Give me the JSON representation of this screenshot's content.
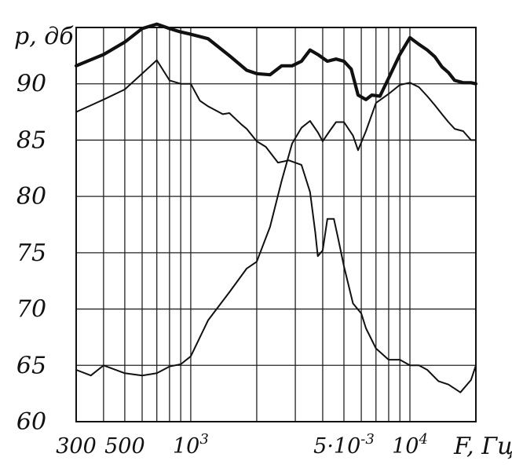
{
  "chart_data": {
    "type": "line",
    "title": "",
    "xlabel": "F, Гц",
    "ylabel": "p, дб",
    "x_scale": "log",
    "xlim": [
      300,
      20000
    ],
    "ylim": [
      60,
      95
    ],
    "grid": true,
    "x_tick_labels": [
      {
        "value": 300,
        "label": "300"
      },
      {
        "value": 500,
        "label": "500"
      },
      {
        "value": 1000,
        "label": "10",
        "sup": "3"
      },
      {
        "value": 5000,
        "label": "5·10",
        "sup": "-3"
      },
      {
        "value": 10000,
        "label": "10",
        "sup": "4"
      }
    ],
    "y_tick_labels": [
      {
        "value": 60,
        "label": "60"
      },
      {
        "value": 65,
        "label": "65"
      },
      {
        "value": 70,
        "label": "70"
      },
      {
        "value": 75,
        "label": "75"
      },
      {
        "value": 80,
        "label": "80"
      },
      {
        "value": 85,
        "label": "85"
      },
      {
        "value": 90,
        "label": "90"
      }
    ],
    "series": [
      {
        "style": "bold",
        "x": [
          300,
          400,
          500,
          600,
          700,
          800,
          900,
          1000,
          1200,
          1500,
          1800,
          2000,
          2300,
          2600,
          2900,
          3200,
          3500,
          3800,
          4200,
          4600,
          5000,
          5400,
          5800,
          6300,
          6700,
          7300,
          8000,
          9000,
          10000,
          11000,
          12000,
          13000,
          14000,
          15000,
          16000,
          17500,
          19000,
          20000
        ],
        "y": [
          91.6,
          92.6,
          93.7,
          94.9,
          95.3,
          94.9,
          94.6,
          94.4,
          94.0,
          92.5,
          91.2,
          90.9,
          90.8,
          91.6,
          91.6,
          92.0,
          93.0,
          92.6,
          92.0,
          92.2,
          92.0,
          91.3,
          89.0,
          88.6,
          89.0,
          88.9,
          90.5,
          92.6,
          94.1,
          93.5,
          93.0,
          92.4,
          91.5,
          91.0,
          90.3,
          90.1,
          90.1,
          90.0
        ]
      },
      {
        "style": "thin",
        "x": [
          300,
          400,
          500,
          600,
          700,
          800,
          900,
          1000,
          1100,
          1200,
          1400,
          1500,
          1700,
          1800,
          2000,
          2200,
          2500,
          2800,
          3200,
          3500,
          3700,
          3800,
          4000,
          4200,
          4500,
          4700,
          5000,
          5500,
          6000,
          6300,
          7000,
          8000,
          9000,
          10000,
          11000,
          12000,
          13500,
          15000,
          17000,
          19000,
          20000
        ],
        "y": [
          87.5,
          88.6,
          89.5,
          90.9,
          92.1,
          90.3,
          90.0,
          90.0,
          88.5,
          88.0,
          87.3,
          87.4,
          86.4,
          86.0,
          84.9,
          84.4,
          83.0,
          83.2,
          82.8,
          80.4,
          76.8,
          74.7,
          75.2,
          78.0,
          78.0,
          76.3,
          73.8,
          70.5,
          69.6,
          68.3,
          66.5,
          65.5,
          65.5,
          65.0,
          65.0,
          64.6,
          63.6,
          63.3,
          62.6,
          63.7,
          65.0
        ]
      },
      {
        "style": "thin",
        "x": [
          300,
          350,
          400,
          500,
          600,
          700,
          800,
          900,
          1000,
          1200,
          1500,
          1800,
          2000,
          2300,
          2600,
          2900,
          3200,
          3500,
          3800,
          4000,
          4300,
          4600,
          5000,
          5500,
          5800,
          6000,
          6300,
          7000,
          8000,
          9000,
          10000,
          11000,
          12000,
          13000,
          14000,
          15000,
          16000,
          17500,
          19000,
          20000
        ],
        "y": [
          64.6,
          64.1,
          65.0,
          64.3,
          64.1,
          64.3,
          64.9,
          65.1,
          65.8,
          69.0,
          71.5,
          73.6,
          74.2,
          77.3,
          81.4,
          84.7,
          86.1,
          86.7,
          85.7,
          84.9,
          85.8,
          86.6,
          86.6,
          85.4,
          84.1,
          84.8,
          85.8,
          88.3,
          89.1,
          89.9,
          90.1,
          89.7,
          88.9,
          88.1,
          87.3,
          86.6,
          86.0,
          85.8,
          85.0,
          85.0
        ]
      }
    ]
  }
}
